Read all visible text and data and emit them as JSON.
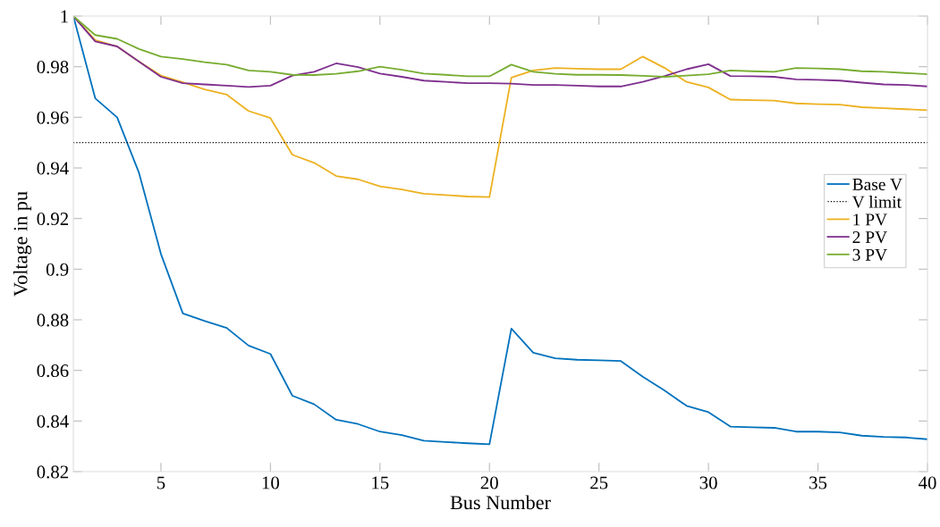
{
  "chart_data": {
    "type": "line",
    "xlabel": "Bus Number",
    "ylabel": "Voltage in pu",
    "x": [
      1,
      2,
      3,
      4,
      5,
      6,
      7,
      8,
      9,
      10,
      11,
      12,
      13,
      14,
      15,
      16,
      17,
      18,
      19,
      20,
      21,
      22,
      23,
      24,
      25,
      26,
      27,
      28,
      29,
      30,
      31,
      32,
      33,
      34,
      35,
      36,
      37,
      38,
      39,
      40
    ],
    "xlim": [
      1,
      40
    ],
    "xticks": [
      5,
      10,
      15,
      20,
      25,
      30,
      35,
      40
    ],
    "ylim": [
      0.82,
      1
    ],
    "yticks": [
      0.82,
      0.84,
      0.86,
      0.88,
      {
        "value": 0.9,
        "label": "0.9"
      },
      0.92,
      0.94,
      0.96,
      0.98,
      {
        "value": 1,
        "label": "1"
      }
    ],
    "grid": false,
    "legend": "right",
    "line_style": "solid",
    "marker": "none",
    "series": [
      {
        "name": "Base V",
        "color": "#0072bd",
        "values": [
          1.0,
          0.9675,
          0.96,
          0.938,
          0.906,
          0.8825,
          0.8795,
          0.8768,
          0.8698,
          0.8665,
          0.85,
          0.8466,
          0.8405,
          0.8388,
          0.8358,
          0.8344,
          0.8322,
          0.8317,
          0.8312,
          0.8308,
          0.8765,
          0.867,
          0.8648,
          0.8642,
          0.864,
          0.8637,
          0.8575,
          0.852,
          0.846,
          0.8435,
          0.8378,
          0.8375,
          0.8373,
          0.8358,
          0.8358,
          0.8355,
          0.8342,
          0.8337,
          0.8335,
          0.8328
        ]
      },
      {
        "name": "1 PV",
        "color": "#edb120",
        "values": [
          1.0,
          0.9905,
          0.988,
          0.982,
          0.9765,
          0.9738,
          0.971,
          0.969,
          0.9625,
          0.9597,
          0.9452,
          0.942,
          0.9368,
          0.9355,
          0.9327,
          0.9315,
          0.9298,
          0.9293,
          0.9287,
          0.9285,
          0.9757,
          0.9785,
          0.9795,
          0.9792,
          0.979,
          0.979,
          0.984,
          0.9795,
          0.974,
          0.9718,
          0.967,
          0.9668,
          0.9666,
          0.9655,
          0.9652,
          0.965,
          0.964,
          0.9636,
          0.9632,
          0.9628
        ]
      },
      {
        "name": "2 PV",
        "color": "#7e2f8e",
        "values": [
          1.0,
          0.99,
          0.988,
          0.982,
          0.976,
          0.9735,
          0.973,
          0.9725,
          0.972,
          0.9725,
          0.9765,
          0.978,
          0.9813,
          0.9798,
          0.9773,
          0.976,
          0.9745,
          0.974,
          0.9735,
          0.9735,
          0.9733,
          0.9728,
          0.9728,
          0.9725,
          0.9722,
          0.9722,
          0.974,
          0.9763,
          0.979,
          0.981,
          0.9763,
          0.9762,
          0.976,
          0.975,
          0.9748,
          0.9745,
          0.9737,
          0.973,
          0.9728,
          0.9722
        ]
      },
      {
        "name": "3 PV",
        "color": "#77ac30",
        "values": [
          1.0,
          0.9925,
          0.991,
          0.987,
          0.984,
          0.983,
          0.9818,
          0.9808,
          0.9785,
          0.978,
          0.9768,
          0.9767,
          0.9772,
          0.9782,
          0.98,
          0.9788,
          0.9773,
          0.9768,
          0.9762,
          0.9762,
          0.9808,
          0.978,
          0.9772,
          0.9768,
          0.9768,
          0.9767,
          0.9764,
          0.976,
          0.9765,
          0.977,
          0.9785,
          0.9782,
          0.978,
          0.9795,
          0.9793,
          0.979,
          0.9782,
          0.978,
          0.9775,
          0.977
        ]
      }
    ],
    "ref_lines": [
      {
        "axis": "y",
        "value": 0.95,
        "label": "V limit",
        "color": "#000000",
        "line_style": "dotted"
      }
    ]
  }
}
